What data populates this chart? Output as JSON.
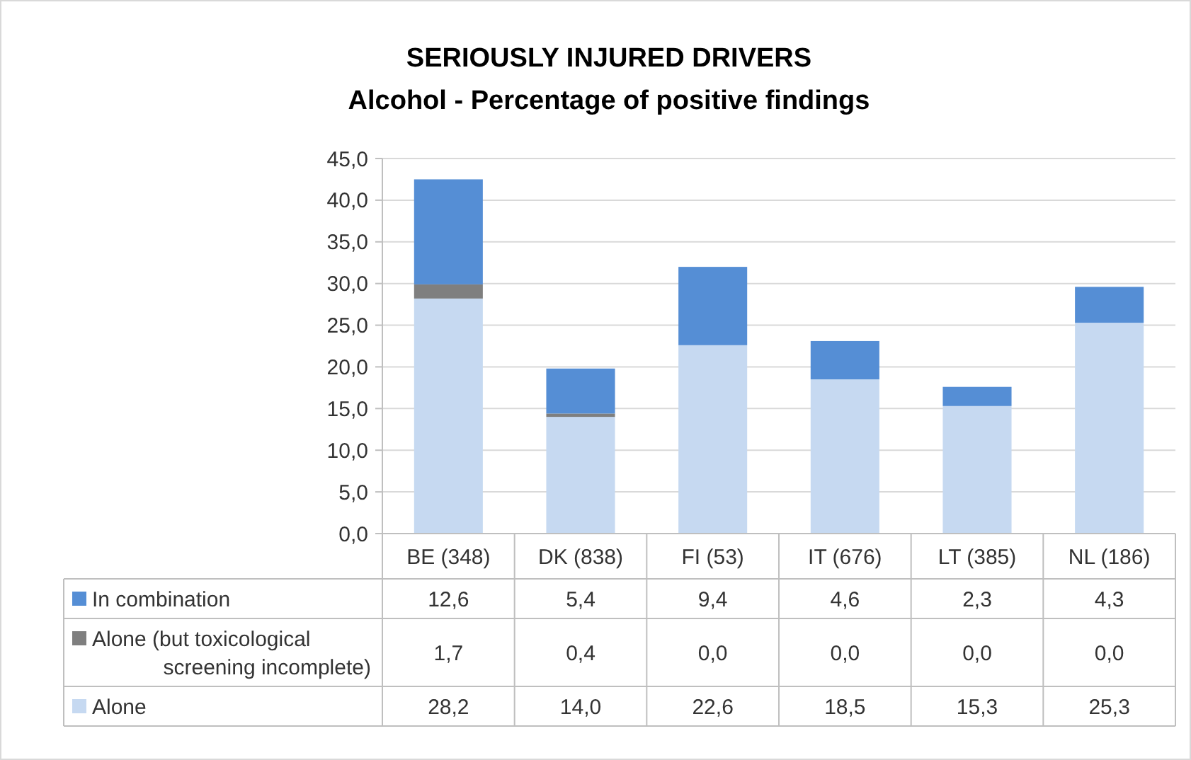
{
  "chart_data": {
    "type": "bar",
    "stacked": true,
    "title": "SERIOUSLY INJURED DRIVERS",
    "subtitle": "Alcohol - Percentage of positive findings",
    "categories": [
      "BE (348)",
      "DK (838)",
      "FI (53)",
      "IT (676)",
      "LT (385)",
      "NL (186)"
    ],
    "series": [
      {
        "name": "Alone",
        "color": "#c6d9f1",
        "values": [
          28.2,
          14.0,
          22.6,
          18.5,
          15.3,
          25.3
        ],
        "value_labels": [
          "28,2",
          "14,0",
          "22,6",
          "18,5",
          "15,3",
          "25,3"
        ]
      },
      {
        "name": "Alone (but toxicological screening incomplete)",
        "color": "#7f7f7f",
        "values": [
          1.7,
          0.4,
          0.0,
          0.0,
          0.0,
          0.0
        ],
        "value_labels": [
          "1,7",
          "0,4",
          "0,0",
          "0,0",
          "0,0",
          "0,0"
        ]
      },
      {
        "name": "In combination",
        "color": "#558ed5",
        "values": [
          12.6,
          5.4,
          9.4,
          4.6,
          2.3,
          4.3
        ],
        "value_labels": [
          "12,6",
          "5,4",
          "9,4",
          "4,6",
          "2,3",
          "4,3"
        ]
      }
    ],
    "ylim": [
      0,
      45
    ],
    "yticks": [
      {
        "value": 0,
        "label": "0,0"
      },
      {
        "value": 5,
        "label": "5,0"
      },
      {
        "value": 10,
        "label": "10,0"
      },
      {
        "value": 15,
        "label": "15,0"
      },
      {
        "value": 20,
        "label": "20,0"
      },
      {
        "value": 25,
        "label": "25,0"
      },
      {
        "value": 30,
        "label": "30,0"
      },
      {
        "value": 35,
        "label": "35,0"
      },
      {
        "value": 40,
        "label": "40,0"
      },
      {
        "value": 45,
        "label": "45,0"
      }
    ],
    "grid": "y",
    "legend": "bottom"
  }
}
